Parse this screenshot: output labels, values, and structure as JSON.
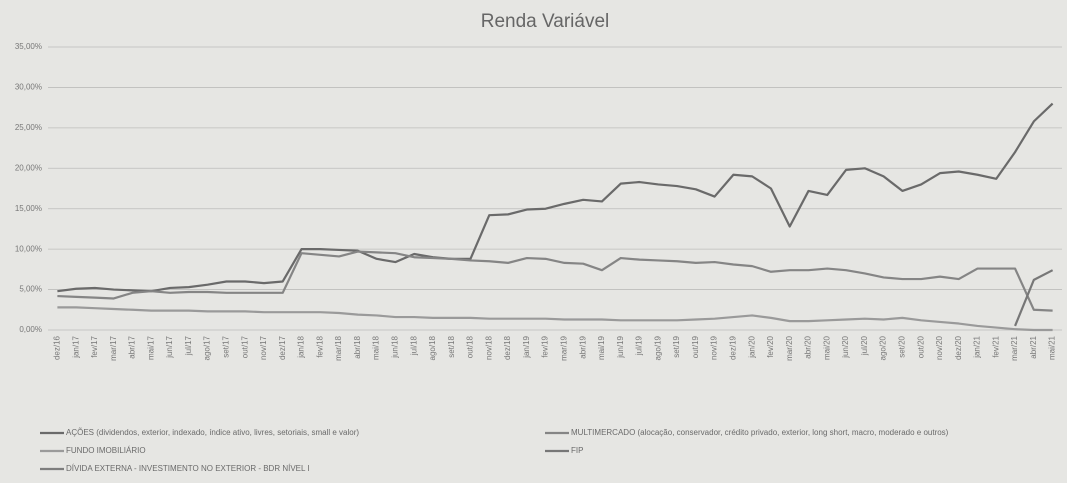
{
  "chart_data": {
    "type": "line",
    "title": "Renda Variável",
    "categories": [
      "dez/16",
      "jan/17",
      "fev/17",
      "mar/17",
      "abr/17",
      "mai/17",
      "jun/17",
      "jul/17",
      "ago/17",
      "set/17",
      "out/17",
      "nov/17",
      "dez/17",
      "jan/18",
      "fev/18",
      "mar/18",
      "abr/18",
      "mai/18",
      "jun/18",
      "jul/18",
      "ago/18",
      "set/18",
      "out/18",
      "nov/18",
      "dez/18",
      "jan/19",
      "fev/19",
      "mar/19",
      "abr/19",
      "mai/19",
      "jun/19",
      "jul/19",
      "ago/19",
      "set/19",
      "out/19",
      "nov/19",
      "dez/19",
      "jan/20",
      "fev/20",
      "mar/20",
      "abr/20",
      "mai/20",
      "jun/20",
      "jul/20",
      "ago/20",
      "set/20",
      "out/20",
      "nov/20",
      "dez/20",
      "jan/21",
      "fev/21",
      "mar/21",
      "abr/21",
      "mai/21"
    ],
    "series": [
      {
        "name": "AÇÕES (dividendos, exterior, indexado, índice ativo, livres, setoriais, small e valor)",
        "color": "#6a6a6a",
        "values": [
          4.8,
          5.1,
          5.2,
          5.0,
          4.9,
          4.8,
          5.2,
          5.3,
          5.6,
          6.0,
          6.0,
          5.8,
          6.0,
          10.0,
          10.0,
          9.9,
          9.8,
          8.8,
          8.4,
          9.4,
          9.0,
          8.8,
          8.8,
          14.2,
          14.3,
          14.9,
          15.0,
          15.6,
          16.1,
          15.9,
          18.1,
          18.3,
          18.0,
          17.8,
          17.4,
          16.5,
          19.2,
          19.0,
          17.5,
          12.8,
          17.2,
          16.7,
          19.8,
          20.0,
          19.0,
          17.2,
          18.0,
          19.4,
          19.6,
          19.2,
          18.7,
          22.0,
          25.8,
          28.0
        ]
      },
      {
        "name": "MULTIMERCADO (alocação, conservador, crédito privado, exterior, long short, macro, moderado e outros)",
        "color": "#858585",
        "values": [
          4.2,
          4.1,
          4.0,
          3.9,
          4.6,
          4.8,
          4.6,
          4.7,
          4.7,
          4.6,
          4.6,
          4.6,
          4.6,
          9.5,
          9.3,
          9.1,
          9.7,
          9.6,
          9.5,
          9.0,
          8.9,
          8.8,
          8.6,
          8.5,
          8.3,
          8.9,
          8.8,
          8.3,
          8.2,
          7.4,
          8.9,
          8.7,
          8.6,
          8.5,
          8.3,
          8.4,
          8.1,
          7.9,
          7.2,
          7.4,
          7.4,
          7.6,
          7.4,
          7.0,
          6.5,
          6.3,
          6.3,
          6.6,
          6.3,
          7.6,
          7.6,
          7.6,
          2.5,
          2.4
        ]
      },
      {
        "name": "FUNDO IMOBILIÁRIO",
        "color": "#9a9a9a",
        "values": [
          2.8,
          2.8,
          2.7,
          2.6,
          2.5,
          2.4,
          2.4,
          2.4,
          2.3,
          2.3,
          2.3,
          2.2,
          2.2,
          2.2,
          2.2,
          2.1,
          1.9,
          1.8,
          1.6,
          1.6,
          1.5,
          1.5,
          1.5,
          1.4,
          1.4,
          1.4,
          1.4,
          1.3,
          1.3,
          1.3,
          1.2,
          1.2,
          1.2,
          1.2,
          1.3,
          1.4,
          1.6,
          1.8,
          1.5,
          1.1,
          1.1,
          1.2,
          1.3,
          1.4,
          1.3,
          1.5,
          1.2,
          1.0,
          0.8,
          0.5,
          0.3,
          0.1,
          0.0,
          0.0
        ]
      },
      {
        "name": "FIP",
        "color": "#777777",
        "values": [
          null,
          null,
          null,
          null,
          null,
          null,
          null,
          null,
          null,
          null,
          null,
          null,
          null,
          null,
          null,
          null,
          null,
          null,
          null,
          null,
          null,
          null,
          null,
          null,
          null,
          null,
          null,
          null,
          null,
          null,
          null,
          null,
          null,
          null,
          null,
          null,
          null,
          null,
          null,
          null,
          null,
          null,
          null,
          null,
          null,
          null,
          null,
          null,
          null,
          null,
          null,
          0.5,
          6.2,
          7.4
        ]
      },
      {
        "name": "DÍVIDA EXTERNA - INVESTIMENTO NO EXTERIOR - BDR NÍVEL I",
        "color": "#7d7d7d",
        "values": [
          null,
          null,
          null,
          null,
          null,
          null,
          null,
          null,
          null,
          null,
          null,
          null,
          null,
          null,
          null,
          null,
          null,
          null,
          null,
          null,
          null,
          null,
          null,
          null,
          null,
          null,
          null,
          null,
          null,
          null,
          null,
          null,
          null,
          null,
          null,
          null,
          null,
          null,
          null,
          null,
          null,
          null,
          null,
          null,
          null,
          null,
          null,
          null,
          null,
          null,
          null,
          null,
          null,
          null
        ]
      }
    ],
    "ylim": [
      0,
      35
    ],
    "yticks": [
      {
        "value": 0,
        "label": "0,00%"
      },
      {
        "value": 5,
        "label": "5,00%"
      },
      {
        "value": 10,
        "label": "10,00%"
      },
      {
        "value": 15,
        "label": "15,00%"
      },
      {
        "value": 20,
        "label": "20,00%"
      },
      {
        "value": 25,
        "label": "25,00%"
      },
      {
        "value": 30,
        "label": "30,00%"
      },
      {
        "value": 35,
        "label": "35,00%"
      }
    ],
    "grid": true
  }
}
